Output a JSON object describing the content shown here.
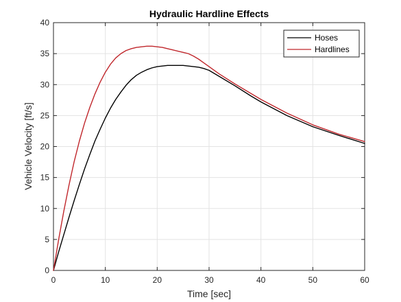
{
  "chart_data": {
    "type": "line",
    "title": "Hydraulic Hardline Effects",
    "xlabel": "Time [sec]",
    "ylabel": "Vehicle Velocity [ft/s]",
    "xlim": [
      0,
      60
    ],
    "ylim": [
      0,
      40
    ],
    "xticks": [
      0,
      10,
      20,
      30,
      40,
      50,
      60
    ],
    "yticks": [
      0,
      5,
      10,
      15,
      20,
      25,
      30,
      35,
      40
    ],
    "grid": true,
    "legend_position": "top-right",
    "series": [
      {
        "name": "Hoses",
        "color": "#000000",
        "x": [
          0,
          1,
          2,
          3,
          4,
          5,
          6,
          7,
          8,
          9,
          10,
          11,
          12,
          13,
          14,
          15,
          16,
          17,
          18,
          19,
          20,
          21,
          22,
          23,
          24,
          25,
          26,
          27,
          28,
          29,
          30,
          32,
          35,
          38,
          40,
          45,
          50,
          55,
          60
        ],
        "y": [
          0,
          3.0,
          5.8,
          8.6,
          11.3,
          13.9,
          16.4,
          18.7,
          20.9,
          22.8,
          24.6,
          26.2,
          27.6,
          28.8,
          29.9,
          30.8,
          31.5,
          32.0,
          32.4,
          32.7,
          32.9,
          33.0,
          33.1,
          33.1,
          33.1,
          33.1,
          33.0,
          32.9,
          32.8,
          32.6,
          32.3,
          31.3,
          29.8,
          28.2,
          27.2,
          25.0,
          23.2,
          21.8,
          20.5
        ]
      },
      {
        "name": "Hardlines",
        "color": "#c0262b",
        "x": [
          0,
          1,
          2,
          3,
          4,
          5,
          6,
          7,
          8,
          9,
          10,
          11,
          12,
          13,
          14,
          15,
          16,
          17,
          18,
          19,
          20,
          21,
          22,
          23,
          24,
          25,
          26,
          27,
          28,
          29,
          30,
          32,
          35,
          38,
          40,
          45,
          50,
          55,
          60
        ],
        "y": [
          0,
          5.0,
          9.6,
          13.8,
          17.6,
          20.9,
          23.8,
          26.3,
          28.5,
          30.4,
          32.0,
          33.3,
          34.3,
          35.0,
          35.5,
          35.8,
          36.0,
          36.1,
          36.2,
          36.2,
          36.1,
          36.0,
          35.8,
          35.6,
          35.4,
          35.2,
          35.0,
          34.6,
          34.1,
          33.5,
          32.9,
          31.7,
          30.1,
          28.6,
          27.6,
          25.4,
          23.5,
          22.0,
          20.8
        ]
      }
    ]
  }
}
